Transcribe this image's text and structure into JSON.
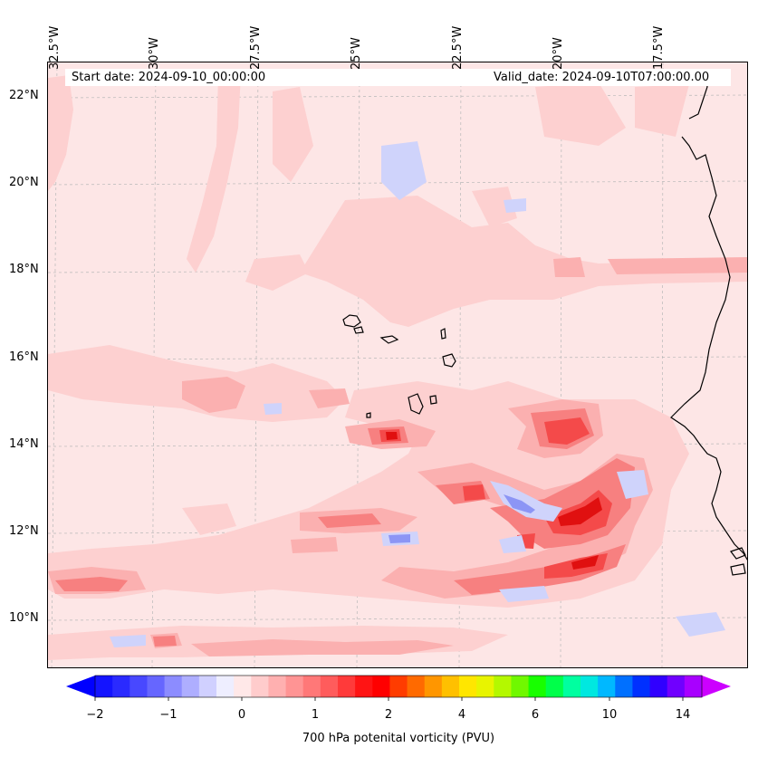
{
  "header": {
    "start_date": "Start date: 2024-09-10_00:00:00",
    "valid_date": "Valid_date: 2024-09-10T07:00:00.00"
  },
  "map": {
    "lon_labels": [
      "32.5°W",
      "30°W",
      "27.5°W",
      "25°W",
      "22.5°W",
      "20°W",
      "17.5°W"
    ],
    "lat_labels": [
      "22°N",
      "20°N",
      "18°N",
      "16°N",
      "14°N",
      "12°N",
      "10°N"
    ],
    "colors": {
      "background_fill": "#fde6e6",
      "light_pink": "#fdd0d0",
      "pink": "#fbb0b0",
      "salmon": "#f78080",
      "red": "#f44a4a",
      "dark_red": "#e01010",
      "light_blue": "#cfd3fb",
      "blue": "#8c95f5",
      "coastline": "#000000"
    }
  },
  "colorbar": {
    "label": "700 hPa potenital vorticity (PVU)",
    "tick_labels": [
      "−2",
      "−1",
      "0",
      "1",
      "2",
      "4",
      "6",
      "10",
      "14"
    ],
    "colors": [
      "#1414ff",
      "#2a2aff",
      "#4848ff",
      "#6666ff",
      "#8c8cff",
      "#aeaeff",
      "#d0d0ff",
      "#eeeeff",
      "#ffe8e8",
      "#ffcccc",
      "#ffb0b0",
      "#ff9494",
      "#ff7878",
      "#ff5c5c",
      "#ff3a3a",
      "#ff1414",
      "#ff0000",
      "#ff3c00",
      "#ff6a00",
      "#ff9600",
      "#ffc000",
      "#ffe600",
      "#e8f400",
      "#b4f800",
      "#70f800",
      "#18ff00",
      "#00ff4a",
      "#00ffa0",
      "#00e8e0",
      "#00b8ff",
      "#0070ff",
      "#0030ff",
      "#3000ff",
      "#7000ff",
      "#a800ff"
    ],
    "arrow_left_color": "#0000ff",
    "arrow_right_color": "#cc00ff"
  }
}
